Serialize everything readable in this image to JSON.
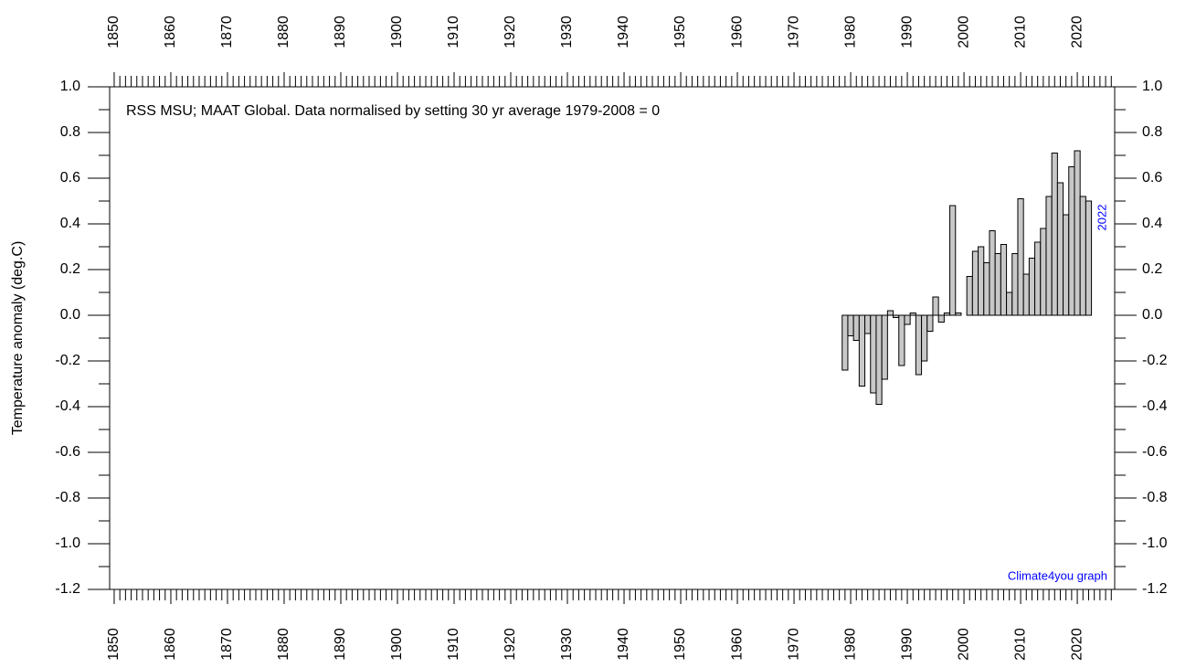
{
  "chart_data": {
    "type": "bar",
    "subtitle": "RSS MSU; MAAT Global. Data normalised by setting 30 yr average 1979-2008 = 0",
    "y_label": "Temperature anomaly (deg.C)",
    "last_year_label": "2022",
    "credit": "Climate4you graph",
    "x": [
      1979,
      1980,
      1981,
      1982,
      1983,
      1984,
      1985,
      1986,
      1987,
      1988,
      1989,
      1990,
      1991,
      1992,
      1993,
      1994,
      1995,
      1996,
      1997,
      1998,
      1999,
      2000,
      2001,
      2002,
      2003,
      2004,
      2005,
      2006,
      2007,
      2008,
      2009,
      2010,
      2011,
      2012,
      2013,
      2014,
      2015,
      2016,
      2017,
      2018,
      2019,
      2020,
      2021,
      2022
    ],
    "values": [
      -0.24,
      -0.09,
      -0.11,
      -0.31,
      -0.08,
      -0.34,
      -0.39,
      -0.28,
      0.02,
      -0.01,
      -0.22,
      -0.04,
      0.01,
      -0.26,
      -0.2,
      -0.07,
      0.08,
      -0.03,
      0.01,
      0.48,
      0.01,
      0.0,
      0.17,
      0.28,
      0.3,
      0.23,
      0.37,
      0.27,
      0.31,
      0.1,
      0.27,
      0.51,
      0.18,
      0.25,
      0.32,
      0.38,
      0.52,
      0.71,
      0.58,
      0.44,
      0.65,
      0.72,
      0.52,
      0.5
    ],
    "color": "#c8c8c8",
    "edge_color": "#000000",
    "annotation_color": "#0000ff",
    "xlim": [
      1849.2,
      2026.6
    ],
    "ylim": [
      -1.2,
      1.0
    ],
    "xticks": [
      1850,
      1860,
      1870,
      1880,
      1890,
      1900,
      1910,
      1920,
      1930,
      1940,
      1950,
      1960,
      1970,
      1980,
      1990,
      2000,
      2010,
      2020
    ],
    "xminor_ticks": [
      1851,
      1852,
      1853,
      1854,
      1855,
      1856,
      1857,
      1858,
      1859,
      1861,
      1862,
      1863,
      1864,
      1865,
      1866,
      1867,
      1868,
      1869,
      1871,
      1872,
      1873,
      1874,
      1875,
      1876,
      1877,
      1878,
      1879,
      1881,
      1882,
      1883,
      1884,
      1885,
      1886,
      1887,
      1888,
      1889,
      1891,
      1892,
      1893,
      1894,
      1895,
      1896,
      1897,
      1898,
      1899,
      1901,
      1902,
      1903,
      1904,
      1905,
      1906,
      1907,
      1908,
      1909,
      1911,
      1912,
      1913,
      1914,
      1915,
      1916,
      1917,
      1918,
      1919,
      1921,
      1922,
      1923,
      1924,
      1925,
      1926,
      1927,
      1928,
      1929,
      1931,
      1932,
      1933,
      1934,
      1935,
      1936,
      1937,
      1938,
      1939,
      1941,
      1942,
      1943,
      1944,
      1945,
      1946,
      1947,
      1948,
      1949,
      1951,
      1952,
      1953,
      1954,
      1955,
      1956,
      1957,
      1958,
      1959,
      1961,
      1962,
      1963,
      1964,
      1965,
      1966,
      1967,
      1968,
      1969,
      1971,
      1972,
      1973,
      1974,
      1975,
      1976,
      1977,
      1978,
      1979,
      1981,
      1982,
      1983,
      1984,
      1985,
      1986,
      1987,
      1988,
      1989,
      1991,
      1992,
      1993,
      1994,
      1995,
      1996,
      1997,
      1998,
      1999,
      2001,
      2002,
      2003,
      2004,
      2005,
      2006,
      2007,
      2008,
      2009,
      2011,
      2012,
      2013,
      2014,
      2015,
      2016,
      2017,
      2018,
      2019,
      2021,
      2022,
      2023,
      2024,
      2025,
      2026
    ],
    "yticks": [
      {
        "value": -1.2,
        "label": "-1.2"
      },
      {
        "value": -1.0,
        "label": "-1.0"
      },
      -0.8,
      -0.6,
      -0.4,
      -0.2,
      {
        "value": 0.0,
        "label": "0.0"
      },
      0.2,
      0.4,
      0.6,
      0.8,
      {
        "value": 1.0,
        "label": "1.0"
      }
    ],
    "yminor_ticks": [
      -1.1,
      -0.9,
      -0.7,
      -0.5,
      -0.3,
      -0.1,
      0.1,
      0.3,
      0.5,
      0.7,
      0.9
    ]
  }
}
